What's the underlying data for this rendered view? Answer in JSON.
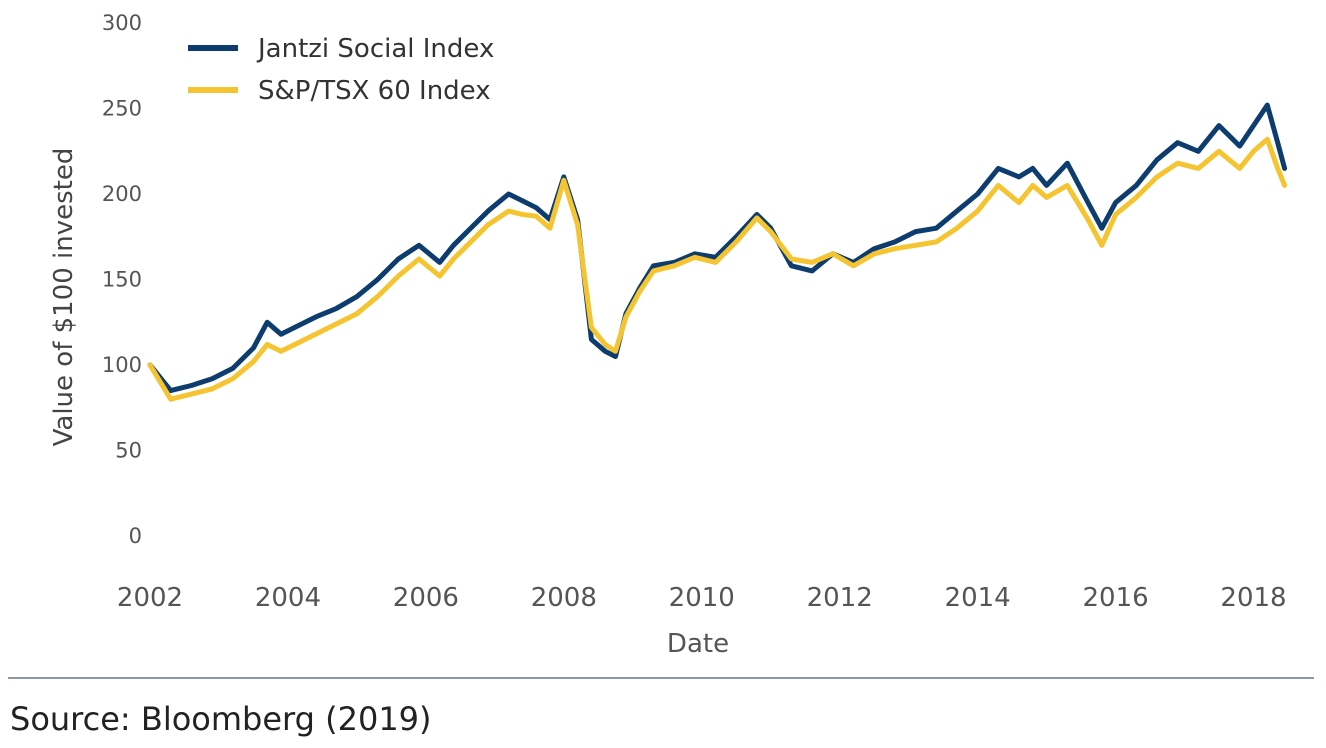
{
  "source_text": "Source: Bloomberg (2019)",
  "colors": {
    "jantzi": "#0d3d6e",
    "tsx": "#f5c431",
    "axis_text": "#555555",
    "divider": "#8a97a8"
  },
  "chart_data": {
    "type": "line",
    "title": "",
    "xlabel": "Date",
    "ylabel": "Value of $100 invested",
    "xlim": [
      2002.0,
      2018.5
    ],
    "ylim": [
      0,
      300
    ],
    "x_ticks": [
      "2002",
      "2004",
      "2006",
      "2008",
      "2010",
      "2012",
      "2014",
      "2016",
      "2018"
    ],
    "y_ticks": [
      "0",
      "50",
      "100",
      "150",
      "200",
      "250",
      "300"
    ],
    "grid": false,
    "legend_position": "top-left",
    "series": [
      {
        "name": "Jantzi Social Index",
        "color": "#0d3d6e",
        "x": [
          2002.0,
          2002.3,
          2002.6,
          2002.9,
          2003.2,
          2003.5,
          2003.7,
          2003.9,
          2004.1,
          2004.4,
          2004.7,
          2005.0,
          2005.3,
          2005.6,
          2005.9,
          2006.2,
          2006.4,
          2006.6,
          2006.9,
          2007.2,
          2007.4,
          2007.6,
          2007.8,
          2008.0,
          2008.2,
          2008.4,
          2008.6,
          2008.75,
          2008.9,
          2009.1,
          2009.3,
          2009.6,
          2009.9,
          2010.2,
          2010.5,
          2010.8,
          2011.0,
          2011.3,
          2011.6,
          2011.9,
          2012.2,
          2012.5,
          2012.8,
          2013.1,
          2013.4,
          2013.7,
          2014.0,
          2014.3,
          2014.6,
          2014.8,
          2015.0,
          2015.3,
          2015.6,
          2015.8,
          2016.0,
          2016.3,
          2016.6,
          2016.9,
          2017.2,
          2017.5,
          2017.8,
          2018.0,
          2018.2,
          2018.35,
          2018.45
        ],
        "y": [
          100,
          85,
          88,
          92,
          98,
          110,
          125,
          118,
          122,
          128,
          133,
          140,
          150,
          162,
          170,
          160,
          170,
          178,
          190,
          200,
          196,
          192,
          185,
          210,
          185,
          115,
          108,
          105,
          130,
          145,
          158,
          160,
          165,
          163,
          175,
          188,
          180,
          158,
          155,
          165,
          160,
          168,
          172,
          178,
          180,
          190,
          200,
          215,
          210,
          215,
          205,
          218,
          195,
          180,
          195,
          205,
          220,
          230,
          225,
          240,
          228,
          240,
          252,
          230,
          215
        ]
      },
      {
        "name": "S&P/TSX 60 Index",
        "color": "#f5c431",
        "x": [
          2002.0,
          2002.3,
          2002.6,
          2002.9,
          2003.2,
          2003.5,
          2003.7,
          2003.9,
          2004.1,
          2004.4,
          2004.7,
          2005.0,
          2005.3,
          2005.6,
          2005.9,
          2006.2,
          2006.4,
          2006.6,
          2006.9,
          2007.2,
          2007.4,
          2007.6,
          2007.8,
          2008.0,
          2008.2,
          2008.4,
          2008.6,
          2008.75,
          2008.9,
          2009.1,
          2009.3,
          2009.6,
          2009.9,
          2010.2,
          2010.5,
          2010.8,
          2011.0,
          2011.3,
          2011.6,
          2011.9,
          2012.2,
          2012.5,
          2012.8,
          2013.1,
          2013.4,
          2013.7,
          2014.0,
          2014.3,
          2014.6,
          2014.8,
          2015.0,
          2015.3,
          2015.6,
          2015.8,
          2016.0,
          2016.3,
          2016.6,
          2016.9,
          2017.2,
          2017.5,
          2017.8,
          2018.0,
          2018.2,
          2018.35,
          2018.45
        ],
        "y": [
          100,
          80,
          83,
          86,
          92,
          102,
          112,
          108,
          112,
          118,
          124,
          130,
          140,
          152,
          162,
          152,
          162,
          170,
          182,
          190,
          188,
          187,
          180,
          208,
          182,
          122,
          112,
          108,
          128,
          143,
          155,
          158,
          163,
          160,
          172,
          186,
          178,
          162,
          160,
          165,
          158,
          165,
          168,
          170,
          172,
          180,
          190,
          205,
          195,
          205,
          198,
          205,
          185,
          170,
          188,
          198,
          210,
          218,
          215,
          225,
          215,
          225,
          232,
          215,
          205
        ]
      }
    ]
  }
}
